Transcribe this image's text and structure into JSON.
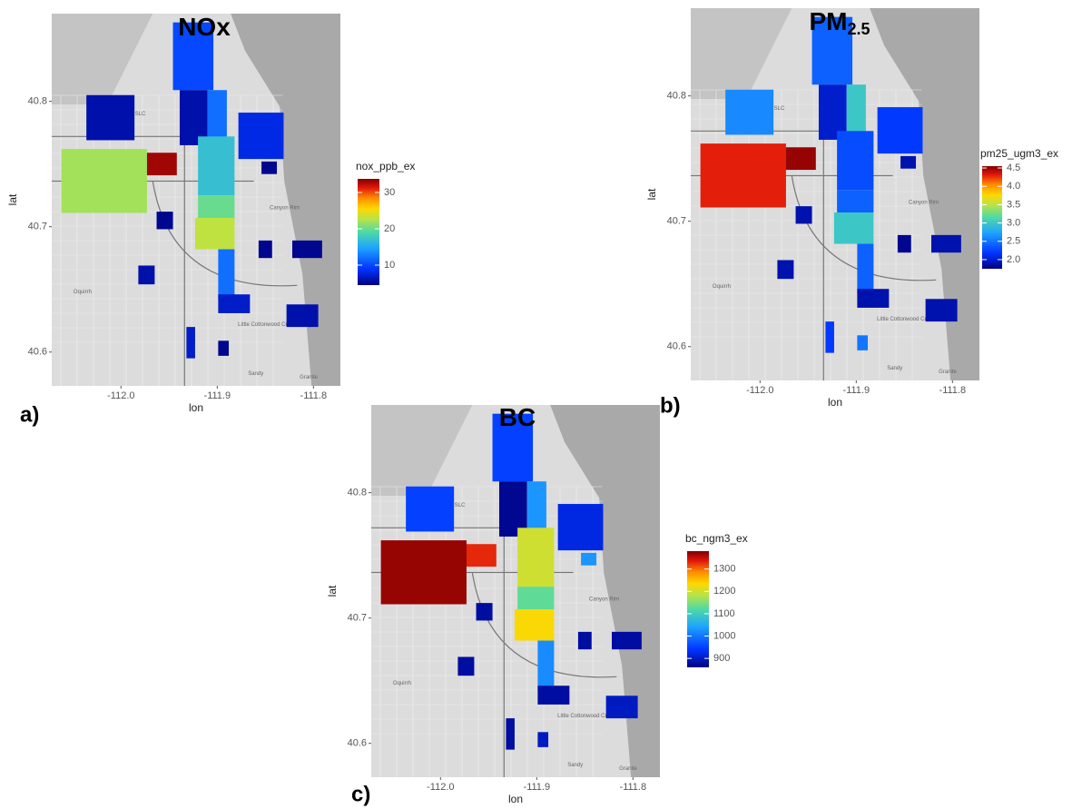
{
  "regions": [
    [
      -112.036,
      -111.986,
      40.769,
      40.805
    ],
    [
      -111.976,
      -111.942,
      40.741,
      40.759
    ],
    [
      -112.062,
      -111.973,
      40.711,
      40.762
    ],
    [
      -111.946,
      -111.904,
      40.809,
      40.863
    ],
    [
      -111.939,
      -111.91,
      40.765,
      40.809
    ],
    [
      -111.91,
      -111.89,
      40.765,
      40.809
    ],
    [
      -111.92,
      -111.882,
      40.725,
      40.772
    ],
    [
      -111.92,
      -111.882,
      40.707,
      40.725
    ],
    [
      -111.923,
      -111.882,
      40.682,
      40.707
    ],
    [
      -111.899,
      -111.882,
      40.642,
      40.682
    ],
    [
      -111.899,
      -111.866,
      40.631,
      40.646
    ],
    [
      -111.878,
      -111.831,
      40.754,
      40.791
    ],
    [
      -111.854,
      -111.838,
      40.742,
      40.752
    ],
    [
      -111.963,
      -111.946,
      40.698,
      40.712
    ],
    [
      -111.982,
      -111.965,
      40.654,
      40.669
    ],
    [
      -111.857,
      -111.843,
      40.675,
      40.689
    ],
    [
      -111.822,
      -111.791,
      40.675,
      40.689
    ],
    [
      -111.828,
      -111.795,
      40.62,
      40.638
    ],
    [
      -111.932,
      -111.923,
      40.595,
      40.62
    ],
    [
      -111.899,
      -111.888,
      40.597,
      40.609
    ]
  ],
  "basemap_labels": [
    {
      "text": "Canyon Rim",
      "lon": -111.83,
      "lat": 40.715
    },
    {
      "text": "Oquirrh",
      "lon": -112.04,
      "lat": 40.648
    },
    {
      "text": "Little Cottonwood Creek Valley",
      "lon": -111.84,
      "lat": 40.622
    },
    {
      "text": "Sandy",
      "lon": -111.86,
      "lat": 40.583
    },
    {
      "text": "Granite",
      "lon": -111.805,
      "lat": 40.58
    },
    {
      "text": "SLC",
      "lon": -111.98,
      "lat": 40.79
    }
  ],
  "chart_data": [
    {
      "type": "choropleth",
      "title": "NOx",
      "panel_label": "a)",
      "x_label": "lon",
      "y_label": "lat",
      "legend_title": "nox_ppb_ex",
      "xlim": [
        -112.072,
        -111.772
      ],
      "ylim": [
        40.573,
        40.87
      ],
      "xticks": [
        {
          "value": -112,
          "label": "-112.0"
        },
        -111.9,
        -111.8
      ],
      "yticks": [
        40.6,
        40.7,
        40.8
      ],
      "clim": [
        4.5,
        33.75
      ],
      "cticks": [
        10,
        20,
        30
      ],
      "values": [
        6,
        33,
        22,
        10,
        6,
        12,
        17,
        20,
        23,
        12,
        7,
        8,
        5,
        5,
        6,
        5,
        5,
        6,
        7,
        5
      ]
    },
    {
      "type": "choropleth",
      "title": "PM",
      "title_subscript": "2.5",
      "panel_label": "b)",
      "x_label": "lon",
      "y_label": "lat",
      "legend_title": "pm25_ugm3_ex",
      "xlim": [
        -112.072,
        -111.772
      ],
      "ylim": [
        40.573,
        40.87
      ],
      "xticks": [
        {
          "value": -112,
          "label": "-112.0"
        },
        -111.9,
        -111.8
      ],
      "yticks": [
        40.6,
        40.7,
        40.8
      ],
      "clim": [
        1.75,
        4.55
      ],
      "cticks": [
        {
          "value": 2,
          "label": "2.0"
        },
        2.5,
        {
          "value": 3,
          "label": "3.0"
        },
        3.5,
        {
          "value": 4,
          "label": "4.0"
        },
        4.5
      ],
      "values": [
        2.6,
        4.5,
        4.3,
        2.4,
        2.0,
        3.0,
        2.3,
        2.4,
        3.0,
        2.4,
        1.9,
        2.2,
        1.9,
        1.9,
        1.9,
        1.8,
        1.9,
        1.9,
        2.2,
        2.5
      ]
    },
    {
      "type": "choropleth",
      "title": "BC",
      "panel_label": "c)",
      "x_label": "lon",
      "y_label": "lat",
      "legend_title": "bc_ngm3_ex",
      "xlim": [
        -112.072,
        -111.772
      ],
      "ylim": [
        40.573,
        40.87
      ],
      "xticks": [
        {
          "value": -112,
          "label": "-112.0"
        },
        -111.9,
        -111.8
      ],
      "yticks": [
        40.6,
        40.7,
        40.8
      ],
      "clim": [
        860,
        1380
      ],
      "cticks": [
        900,
        1000,
        1100,
        1200,
        1300
      ],
      "values": [
        950,
        1330,
        1370,
        950,
        870,
        1030,
        1200,
        1130,
        1230,
        1020,
        880,
        920,
        1030,
        880,
        880,
        880,
        880,
        900,
        880,
        900
      ]
    }
  ]
}
